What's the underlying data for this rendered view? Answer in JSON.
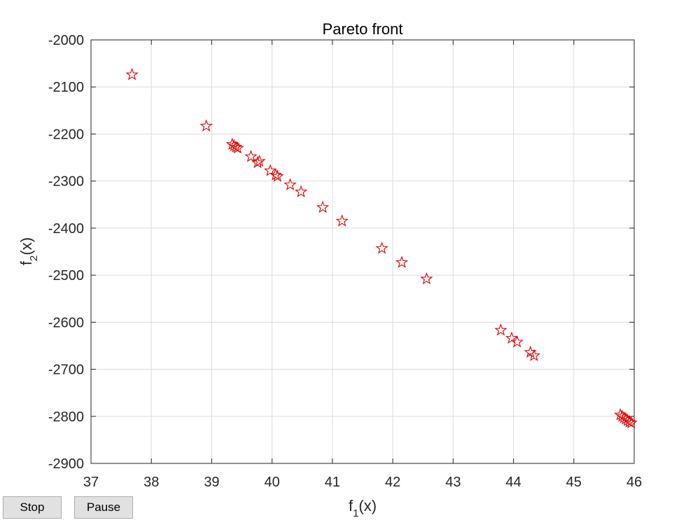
{
  "colors": {
    "marker": "#e00000",
    "grid": "#dcdcdc",
    "axis": "#262626"
  },
  "buttons": {
    "stop_label": "Stop",
    "pause_label": "Pause"
  },
  "chart_data": {
    "type": "scatter",
    "title": "Pareto front",
    "xlabel": {
      "base": "f",
      "sub": "1",
      "rest": "(x)"
    },
    "ylabel": {
      "base": "f",
      "sub": "2",
      "rest": "(x)"
    },
    "xlim": [
      37,
      46
    ],
    "ylim": [
      -2900,
      -2000
    ],
    "xticks": [
      37,
      38,
      39,
      40,
      41,
      42,
      43,
      44,
      45,
      46
    ],
    "yticks": [
      -2000,
      -2100,
      -2200,
      -2300,
      -2400,
      -2500,
      -2600,
      -2700,
      -2800,
      -2900
    ],
    "grid": true,
    "marker": "pentagram",
    "points": [
      [
        37.68,
        -2074
      ],
      [
        38.91,
        -2183
      ],
      [
        39.34,
        -2222
      ],
      [
        39.37,
        -2225
      ],
      [
        39.4,
        -2228
      ],
      [
        39.43,
        -2230
      ],
      [
        39.65,
        -2248
      ],
      [
        39.76,
        -2261
      ],
      [
        39.79,
        -2258
      ],
      [
        39.97,
        -2278
      ],
      [
        40.06,
        -2287
      ],
      [
        40.09,
        -2290
      ],
      [
        40.3,
        -2308
      ],
      [
        40.48,
        -2323
      ],
      [
        40.84,
        -2356
      ],
      [
        41.16,
        -2385
      ],
      [
        41.82,
        -2443
      ],
      [
        42.15,
        -2473
      ],
      [
        42.56,
        -2508
      ],
      [
        43.79,
        -2617
      ],
      [
        43.97,
        -2634
      ],
      [
        44.06,
        -2642
      ],
      [
        44.28,
        -2664
      ],
      [
        44.34,
        -2671
      ],
      [
        45.77,
        -2797
      ],
      [
        45.8,
        -2800
      ],
      [
        45.83,
        -2803
      ],
      [
        45.86,
        -2806
      ],
      [
        45.89,
        -2809
      ],
      [
        45.92,
        -2812
      ],
      [
        45.95,
        -2814
      ]
    ]
  }
}
